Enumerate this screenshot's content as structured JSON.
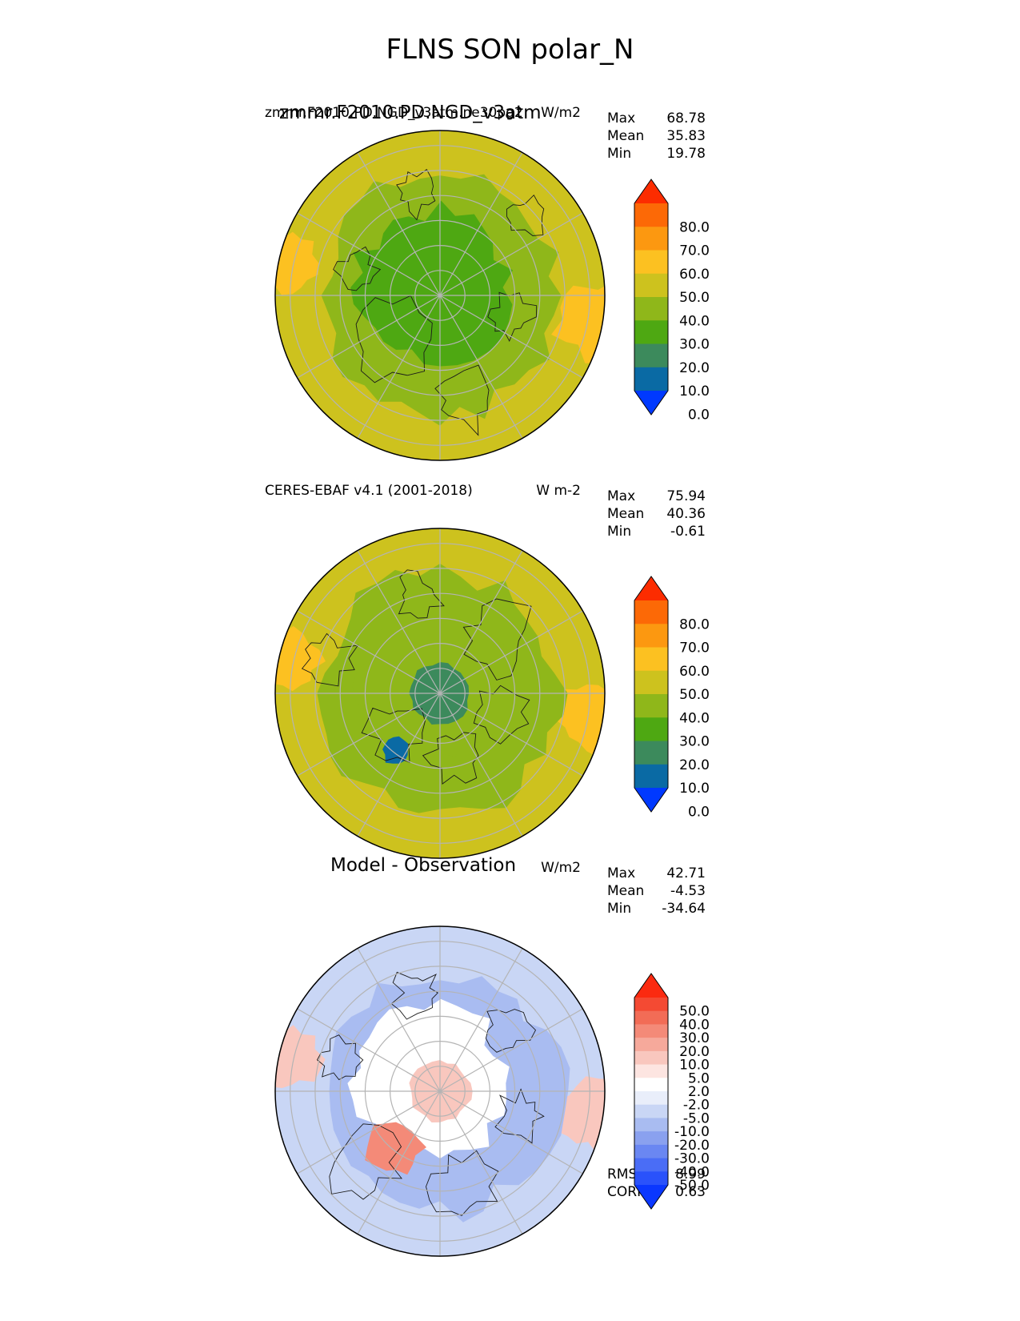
{
  "figure_title": "FLNS SON polar_N",
  "panels": [
    {
      "id": "test",
      "title": "zmmr.F2010.PD.NGD_v3atm",
      "title_overlap": "zmmr.F2010.PD.NGD_v3atm.ne30pg2",
      "units": "W/m2",
      "stats": [
        {
          "label": "Max",
          "value": "68.78"
        },
        {
          "label": "Mean",
          "value": "35.83"
        },
        {
          "label": "Min",
          "value": "19.78"
        }
      ],
      "colorbar": {
        "ticks": [
          "80.0",
          "70.0",
          "60.0",
          "50.0",
          "40.0",
          "30.0",
          "20.0",
          "10.0",
          "0.0"
        ],
        "colors": [
          "#0039ff",
          "#0a6aa4",
          "#3c8a5c",
          "#4ea812",
          "#8fb71a",
          "#cdc21e",
          "#fcc121",
          "#fc9810",
          "#fc6906",
          "#fc2c00"
        ],
        "arrow_low": "#0039ff",
        "arrow_high": "#fc2c00"
      },
      "map_colors": {
        "outer": "#cdc21e",
        "mid": "#8fb71a",
        "inner": "#4ea812",
        "pole": "#4ea812",
        "edge_warm": "#fcc121"
      }
    },
    {
      "id": "reference",
      "title": "CERES-EBAF v4.1 (2001-2018)",
      "units": "W m-2",
      "stats": [
        {
          "label": "Max",
          "value": "75.94"
        },
        {
          "label": "Mean",
          "value": "40.36"
        },
        {
          "label": "Min",
          "value": "-0.61"
        }
      ],
      "colorbar": {
        "ticks": [
          "80.0",
          "70.0",
          "60.0",
          "50.0",
          "40.0",
          "30.0",
          "20.0",
          "10.0",
          "0.0"
        ],
        "colors": [
          "#0039ff",
          "#0a6aa4",
          "#3c8a5c",
          "#4ea812",
          "#8fb71a",
          "#cdc21e",
          "#fcc121",
          "#fc9810",
          "#fc6906",
          "#fc2c00"
        ],
        "arrow_low": "#0039ff",
        "arrow_high": "#fc2c00"
      },
      "map_colors": {
        "outer": "#cdc21e",
        "mid": "#8fb71a",
        "inner": "#8fb71a",
        "pole": "#3c8a5c",
        "edge_warm": "#fcc121"
      }
    },
    {
      "id": "difference",
      "title": "Model - Observation",
      "units": "W/m2",
      "stats": [
        {
          "label": "Max",
          "value": "42.71"
        },
        {
          "label": "Mean",
          "value": "-4.53"
        },
        {
          "label": "Min",
          "value": "-34.64"
        }
      ],
      "extra_stats": [
        {
          "label": "RMSE",
          "value": "8.99"
        },
        {
          "label": "CORR",
          "value": "0.63"
        }
      ],
      "colorbar": {
        "ticks": [
          "50.0",
          "40.0",
          "30.0",
          "20.0",
          "10.0",
          "5.0",
          "2.0",
          "-2.0",
          "-5.0",
          "-10.0",
          "-20.0",
          "-30.0",
          "-40.0",
          "-50.0"
        ],
        "colors": [
          "#0a37ff",
          "#2a52fb",
          "#4a6df6",
          "#6a87f2",
          "#8aa1ef",
          "#a9bcf1",
          "#c9d6f5",
          "#e9eefa",
          "#ffffff",
          "#fde5e1",
          "#f9c7be",
          "#f6a99b",
          "#f48a78",
          "#f26c56",
          "#f44a33",
          "#fb2a10"
        ],
        "arrow_low": "#0a37ff",
        "arrow_high": "#fb2a10"
      },
      "map_colors": {
        "outer": "#c9d6f5",
        "mid": "#a9bcf1",
        "inner": "#ffffff",
        "pole": "#f9c7be",
        "edge_warm": "#f9c7be"
      }
    }
  ]
}
